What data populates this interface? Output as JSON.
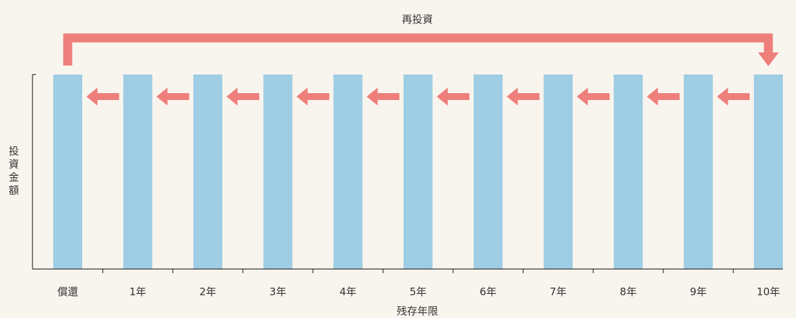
{
  "chart_data": {
    "type": "bar",
    "title": "",
    "top_label": "再投資",
    "xlabel": "残存年限",
    "ylabel": "投資金額",
    "categories": [
      "償還",
      "1年",
      "2年",
      "3年",
      "4年",
      "5年",
      "6年",
      "7年",
      "8年",
      "9年",
      "10年"
    ],
    "values": [
      1,
      1,
      1,
      1,
      1,
      1,
      1,
      1,
      1,
      1,
      1
    ],
    "ylim": [
      0,
      1
    ],
    "grid": false,
    "legend": "none",
    "shift_arrows": [
      {
        "from": "10年",
        "to": "9年"
      },
      {
        "from": "9年",
        "to": "8年"
      },
      {
        "from": "8年",
        "to": "7年"
      },
      {
        "from": "7年",
        "to": "6年"
      },
      {
        "from": "6年",
        "to": "5年"
      },
      {
        "from": "5年",
        "to": "4年"
      },
      {
        "from": "4年",
        "to": "3年"
      },
      {
        "from": "3年",
        "to": "2年"
      },
      {
        "from": "2年",
        "to": "1年"
      },
      {
        "from": "1年",
        "to": "償還"
      }
    ],
    "reinvest_arrow": {
      "from": "償還",
      "to": "10年"
    }
  },
  "colors": {
    "bar": "#9fcde3",
    "arrow": "#ee7f7b",
    "axis": "#333333",
    "background": "#f8f5ee"
  }
}
